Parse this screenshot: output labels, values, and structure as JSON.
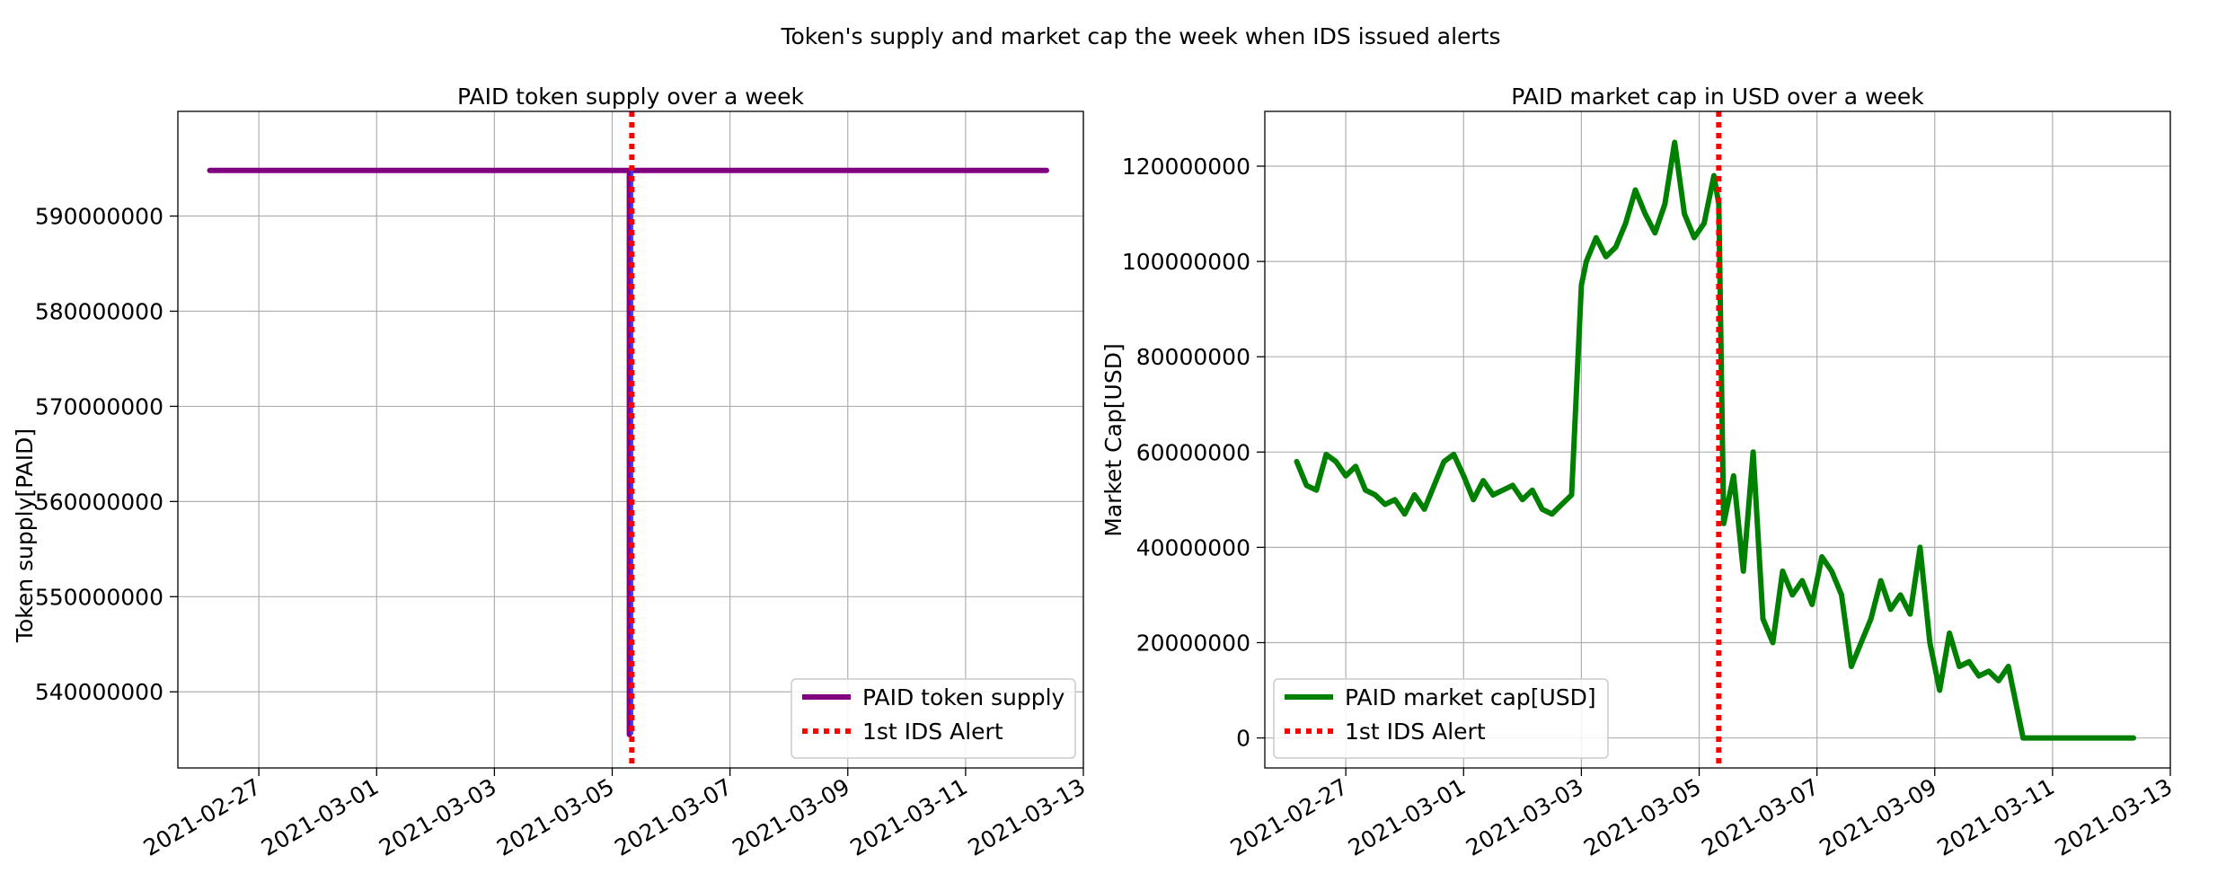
{
  "figure_title": "Token's supply and market cap the week when IDS issued alerts",
  "chart_data": [
    {
      "type": "line",
      "title": "PAID token supply over a week",
      "xlabel": "",
      "ylabel": "Token supply[PAID]",
      "x_ticks": [
        "2021-02-27",
        "2021-03-01",
        "2021-03-03",
        "2021-03-05",
        "2021-03-07",
        "2021-03-09",
        "2021-03-11",
        "2021-03-13"
      ],
      "xlim": [
        "2021-02-25T15:00",
        "2021-03-13T00:00"
      ],
      "ylim": [
        532000000,
        601000000
      ],
      "y_ticks": [
        540000000,
        550000000,
        560000000,
        570000000,
        580000000,
        590000000
      ],
      "y_tick_labels": [
        "540000000",
        "550000000",
        "560000000",
        "570000000",
        "580000000",
        "590000000"
      ],
      "grid": true,
      "legend_position": "lower right",
      "series": [
        {
          "name": "PAID token supply",
          "color": "#800080",
          "x": [
            "2021-02-26T04:00",
            "2021-03-05T07:00",
            "2021-03-05T07:00",
            "2021-03-05T07:00",
            "2021-03-12T09:00"
          ],
          "y": [
            594800000,
            594800000,
            535500000,
            594800000,
            594800000
          ]
        }
      ],
      "alert": {
        "name": "1st IDS Alert",
        "x": "2021-03-05T08:00",
        "color": "#ff0000"
      },
      "alert_overlay_color": "#3a3aff"
    },
    {
      "type": "line",
      "title": "PAID market cap in USD over a week",
      "xlabel": "",
      "ylabel": "Market Cap[USD]",
      "x_ticks": [
        "2021-02-27",
        "2021-03-01",
        "2021-03-03",
        "2021-03-05",
        "2021-03-07",
        "2021-03-09",
        "2021-03-11",
        "2021-03-13"
      ],
      "xlim": [
        "2021-02-25T15:00",
        "2021-03-13T00:00"
      ],
      "ylim": [
        -6300000,
        131500000
      ],
      "y_ticks": [
        0,
        20000000,
        40000000,
        60000000,
        80000000,
        100000000,
        120000000
      ],
      "y_tick_labels": [
        "0",
        "20000000",
        "40000000",
        "60000000",
        "80000000",
        "100000000",
        "120000000"
      ],
      "grid": true,
      "legend_position": "lower left",
      "series": [
        {
          "name": "PAID market cap[USD]",
          "color": "#008000",
          "x": [
            "2021-02-26T04:00",
            "2021-02-26T08:00",
            "2021-02-26T12:00",
            "2021-02-26T16:00",
            "2021-02-26T20:00",
            "2021-02-27T00:00",
            "2021-02-27T04:00",
            "2021-02-27T08:00",
            "2021-02-27T12:00",
            "2021-02-27T16:00",
            "2021-02-27T20:00",
            "2021-02-28T00:00",
            "2021-02-28T04:00",
            "2021-02-28T08:00",
            "2021-02-28T12:00",
            "2021-02-28T16:00",
            "2021-02-28T20:00",
            "2021-03-01T00:00",
            "2021-03-01T04:00",
            "2021-03-01T08:00",
            "2021-03-01T12:00",
            "2021-03-01T16:00",
            "2021-03-01T20:00",
            "2021-03-02T00:00",
            "2021-03-02T04:00",
            "2021-03-02T08:00",
            "2021-03-02T12:00",
            "2021-03-02T16:00",
            "2021-03-02T20:00",
            "2021-03-03T00:00",
            "2021-03-03T02:00",
            "2021-03-03T06:00",
            "2021-03-03T10:00",
            "2021-03-03T14:00",
            "2021-03-03T18:00",
            "2021-03-03T22:00",
            "2021-03-04T02:00",
            "2021-03-04T06:00",
            "2021-03-04T10:00",
            "2021-03-04T14:00",
            "2021-03-04T18:00",
            "2021-03-04T22:00",
            "2021-03-05T02:00",
            "2021-03-05T06:00",
            "2021-03-05T08:00",
            "2021-03-05T10:00",
            "2021-03-05T14:00",
            "2021-03-05T18:00",
            "2021-03-05T22:00",
            "2021-03-06T02:00",
            "2021-03-06T06:00",
            "2021-03-06T10:00",
            "2021-03-06T14:00",
            "2021-03-06T18:00",
            "2021-03-06T22:00",
            "2021-03-07T02:00",
            "2021-03-07T06:00",
            "2021-03-07T10:00",
            "2021-03-07T14:00",
            "2021-03-07T18:00",
            "2021-03-07T22:00",
            "2021-03-08T02:00",
            "2021-03-08T06:00",
            "2021-03-08T10:00",
            "2021-03-08T14:00",
            "2021-03-08T18:00",
            "2021-03-08T22:00",
            "2021-03-09T02:00",
            "2021-03-09T06:00",
            "2021-03-09T10:00",
            "2021-03-09T14:00",
            "2021-03-09T18:00",
            "2021-03-09T22:00",
            "2021-03-10T02:00",
            "2021-03-10T06:00",
            "2021-03-10T12:00",
            "2021-03-11T00:00",
            "2021-03-11T12:00",
            "2021-03-12T00:00",
            "2021-03-12T09:00"
          ],
          "y": [
            58000000,
            53000000,
            52000000,
            59500000,
            58000000,
            55000000,
            57000000,
            52000000,
            51000000,
            49000000,
            50000000,
            47000000,
            51000000,
            48000000,
            53000000,
            58000000,
            59500000,
            55000000,
            50000000,
            54000000,
            51000000,
            52000000,
            53000000,
            50000000,
            52000000,
            48000000,
            47000000,
            49000000,
            51000000,
            95000000,
            100000000,
            105000000,
            101000000,
            103000000,
            108000000,
            115000000,
            110000000,
            106000000,
            112000000,
            125000000,
            110000000,
            105000000,
            108000000,
            118000000,
            112000000,
            45000000,
            55000000,
            35000000,
            60000000,
            25000000,
            20000000,
            35000000,
            30000000,
            33000000,
            28000000,
            38000000,
            35000000,
            30000000,
            15000000,
            20000000,
            25000000,
            33000000,
            27000000,
            30000000,
            26000000,
            40000000,
            20000000,
            10000000,
            22000000,
            15000000,
            16000000,
            13000000,
            14000000,
            12000000,
            15000000,
            0,
            0,
            0,
            0,
            0
          ]
        }
      ],
      "alert": {
        "name": "1st IDS Alert",
        "x": "2021-03-05T08:00",
        "color": "#ff0000"
      }
    }
  ]
}
